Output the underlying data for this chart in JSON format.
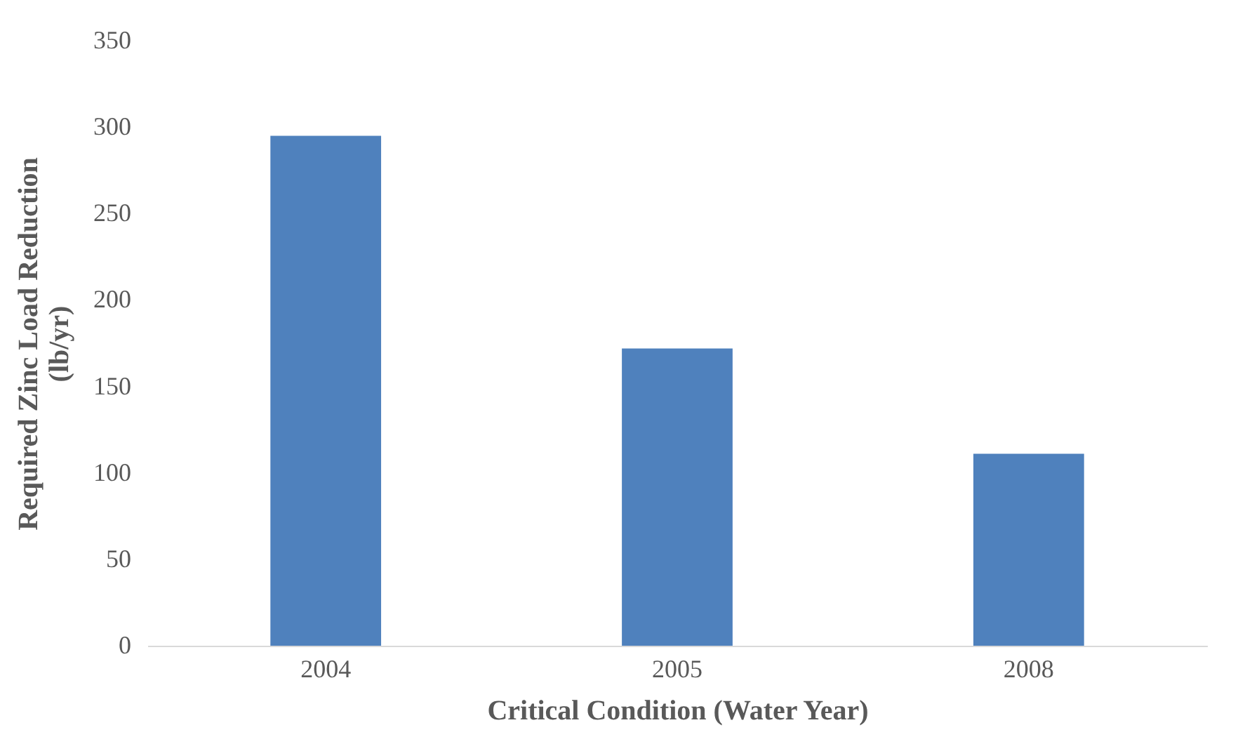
{
  "chart_data": {
    "type": "bar",
    "xlabel": "Critical Condition (Water Year)",
    "ylabel": "Required Zinc Load Reduction (lb/yr)",
    "categories": [
      "2004",
      "2005",
      "2008"
    ],
    "values": [
      295,
      172,
      111
    ],
    "color": "#4f81bd",
    "ylim": [
      0,
      350
    ],
    "yticks": [
      0,
      50,
      100,
      150,
      200,
      250,
      300,
      350
    ],
    "grid": false
  }
}
